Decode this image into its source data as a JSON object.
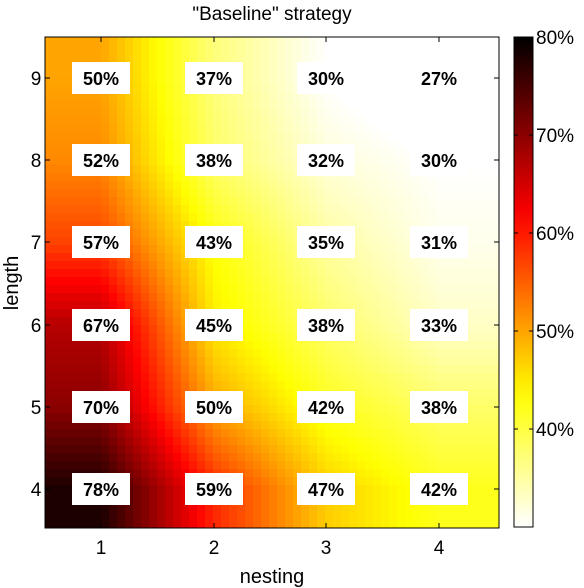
{
  "chart_data": {
    "type": "heatmap",
    "title": "\"Baseline\" strategy",
    "xlabel": "nesting",
    "ylabel": "length",
    "x": [
      "1",
      "2",
      "3",
      "4"
    ],
    "y": [
      "4",
      "5",
      "6",
      "7",
      "8",
      "9"
    ],
    "values": [
      [
        78,
        59,
        47,
        42
      ],
      [
        70,
        50,
        42,
        38
      ],
      [
        67,
        45,
        38,
        33
      ],
      [
        57,
        43,
        35,
        31
      ],
      [
        52,
        38,
        32,
        30
      ],
      [
        50,
        37,
        30,
        27
      ]
    ],
    "value_labels": [
      [
        "78%",
        "59%",
        "47%",
        "42%"
      ],
      [
        "70%",
        "50%",
        "42%",
        "38%"
      ],
      [
        "67%",
        "45%",
        "38%",
        "33%"
      ],
      [
        "57%",
        "43%",
        "35%",
        "31%"
      ],
      [
        "52%",
        "38%",
        "32%",
        "30%"
      ],
      [
        "50%",
        "37%",
        "30%",
        "27%"
      ]
    ],
    "colorbar": {
      "range": [
        30,
        80
      ],
      "ticks": [
        "40%",
        "50%",
        "60%",
        "70%",
        "80%"
      ],
      "tick_values": [
        40,
        50,
        60,
        70,
        80
      ],
      "colormap": "hot-reversed"
    },
    "interpolation": "smooth",
    "grid": false
  }
}
